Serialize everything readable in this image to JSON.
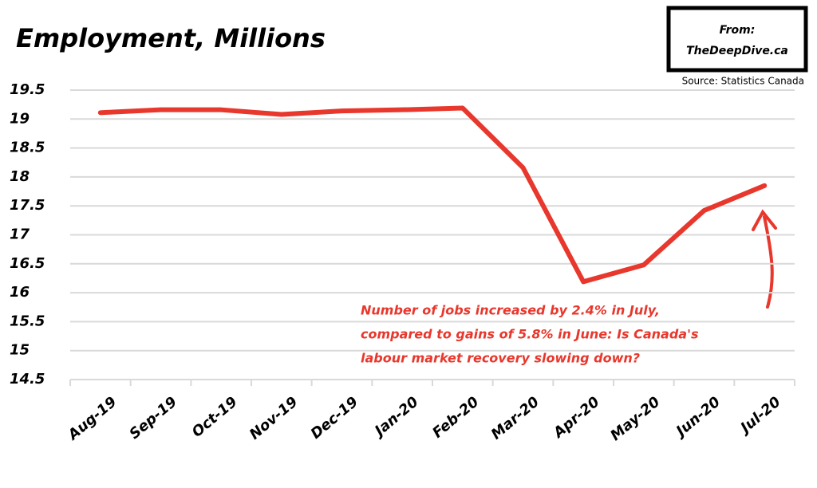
{
  "chart_data": {
    "type": "line",
    "title": "Employment, Millions",
    "from_label": "From:",
    "source_site": "TheDeepDive.ca",
    "source": "Source: Statistics Canada",
    "annotation": [
      "Number of jobs increased by 2.4% in July,",
      "compared to gains of 5.8% in June: Is Canada's",
      "labour market recovery slowing down?"
    ],
    "categories": [
      "Aug-19",
      "Sep-19",
      "Oct-19",
      "Nov-19",
      "Dec-19",
      "Jan-20",
      "Feb-20",
      "Mar-20",
      "Apr-20",
      "May-20",
      "Jun-20",
      "Jul-20"
    ],
    "values": [
      19.11,
      19.16,
      19.16,
      19.08,
      19.14,
      19.16,
      19.19,
      18.16,
      16.19,
      16.48,
      17.42,
      17.85
    ],
    "color": "#e8372c",
    "ylim": [
      14.5,
      19.5
    ],
    "yticks": [
      14.5,
      15,
      15.5,
      16,
      16.5,
      17,
      17.5,
      18,
      18.5,
      19,
      19.5
    ],
    "grid": true
  }
}
